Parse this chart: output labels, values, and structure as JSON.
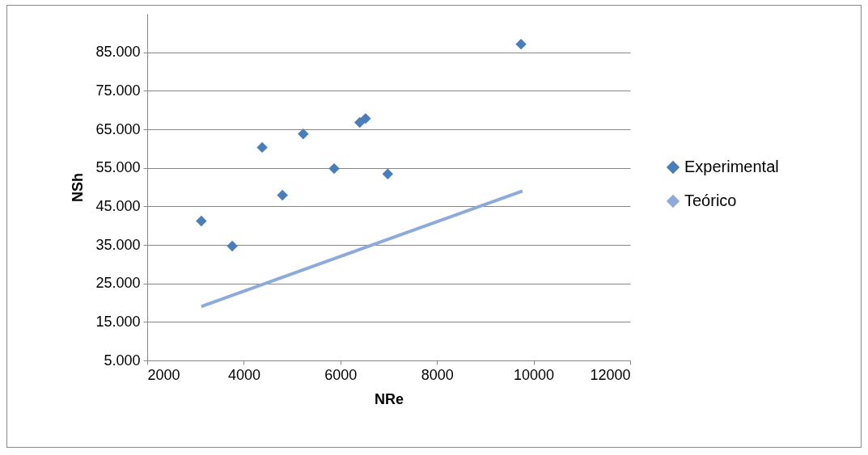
{
  "chart_data": {
    "type": "scatter",
    "xlabel": "NRe",
    "ylabel": "NSh",
    "series": [
      {
        "name": "Experimental",
        "type": "scatter",
        "color": "#4a7ebb",
        "marker": "diamond",
        "x": [
          3120,
          3760,
          4380,
          4800,
          5230,
          5870,
          6400,
          6520,
          6980,
          9740
        ],
        "values": [
          41200,
          34700,
          60300,
          47900,
          63800,
          54800,
          66800,
          67800,
          53400,
          87100
        ]
      },
      {
        "name": "Teórico",
        "type": "line",
        "color": "#8eaadb",
        "marker": "none",
        "line_style": "solid",
        "x": [
          3120,
          9770
        ],
        "values": [
          19000,
          49000
        ]
      }
    ],
    "xlim": [
      2000,
      12000
    ],
    "xticks": [
      2000,
      4000,
      6000,
      8000,
      10000,
      12000
    ],
    "ylim": [
      5000,
      95000
    ],
    "yticks": [
      {
        "value": 5000,
        "label": "5.000"
      },
      {
        "value": 15000,
        "label": "15.000"
      },
      {
        "value": 25000,
        "label": "25.000"
      },
      {
        "value": 35000,
        "label": "35.000"
      },
      {
        "value": 45000,
        "label": "45.000"
      },
      {
        "value": 55000,
        "label": "55.000"
      },
      {
        "value": 65000,
        "label": "65.000"
      },
      {
        "value": 75000,
        "label": "75.000"
      },
      {
        "value": 85000,
        "label": "85.000"
      }
    ],
    "grid": "y",
    "legend": "right"
  }
}
